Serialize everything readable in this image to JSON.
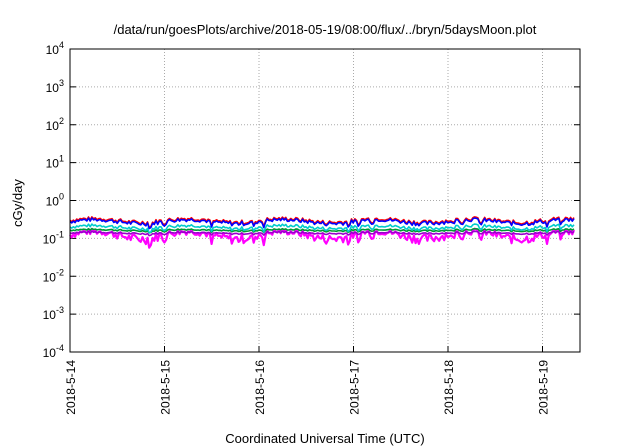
{
  "chart_data": {
    "type": "line",
    "title": "/data/run/goesPlots/archive/2018-05-19/08:00/flux/../bryn/5daysMoon.plot",
    "xlabel": "Coordinated Universal Time (UTC)",
    "ylabel": "cGy/day",
    "yscale": "log",
    "ylim": [
      0.0001,
      10000
    ],
    "xlim": [
      "2018-05-14 00:00",
      "2018-05-19 08:00"
    ],
    "grid": true,
    "x_ticks": [
      "2018-5-14",
      "2018-5-15",
      "2018-5-16",
      "2018-5-17",
      "2018-5-18",
      "2018-5-19"
    ],
    "y_ticks": [
      {
        "base": "10",
        "exp": "-4"
      },
      {
        "base": "10",
        "exp": "-3"
      },
      {
        "base": "10",
        "exp": "-2"
      },
      {
        "base": "10",
        "exp": "-1"
      },
      {
        "base": "10",
        "exp": "0"
      },
      {
        "base": "10",
        "exp": "1"
      },
      {
        "base": "10",
        "exp": "2"
      },
      {
        "base": "10",
        "exp": "3"
      },
      {
        "base": "10",
        "exp": "4"
      }
    ],
    "series": [
      {
        "color": "#ff00ff",
        "level": 0.125,
        "noise": 0.22,
        "dip": 0.45
      },
      {
        "color": "#9900cc",
        "level": 0.14,
        "noise": 0.05,
        "dip": 0.12
      },
      {
        "color": "#009933",
        "level": 0.165,
        "noise": 0.05,
        "dip": 0.12
      },
      {
        "color": "#00cccc",
        "level": 0.2,
        "noise": 0.1,
        "dip": 0.25
      },
      {
        "color": "#ff0000",
        "level": 0.3,
        "noise": 0.12,
        "dip": 0.3
      },
      {
        "color": "#0000ff",
        "level": 0.28,
        "noise": 0.12,
        "dip": 0.3
      }
    ]
  }
}
